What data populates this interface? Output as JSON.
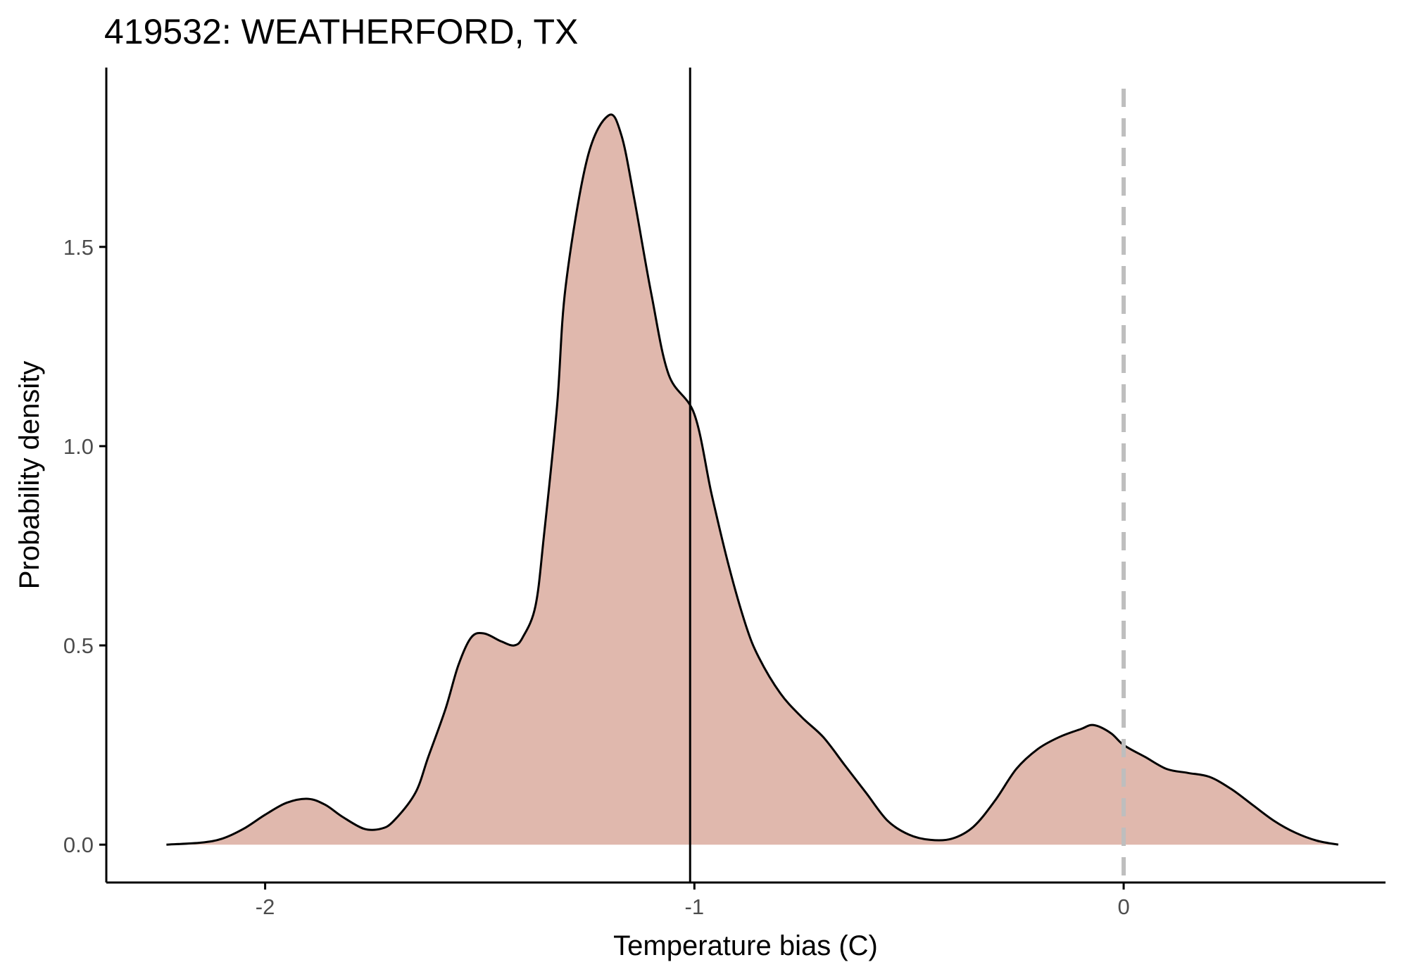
{
  "chart_data": {
    "type": "area",
    "title": "419532: WEATHERFORD, TX",
    "xlabel": "Temperature bias (C)",
    "ylabel": "Probability density",
    "xlim": [
      -2.37,
      0.61
    ],
    "ylim": [
      -0.095,
      1.95
    ],
    "x_ticks": [
      -2,
      -1,
      0
    ],
    "x_tick_labels": [
      "-2",
      "-1",
      "0"
    ],
    "y_ticks": [
      0,
      0.5,
      1,
      1.5
    ],
    "y_tick_labels": [
      "0.0",
      "0.5",
      "1.0",
      "1.5"
    ],
    "grid": false,
    "legend": "none",
    "fill_color": "#e0b8ad",
    "line_color": "#000000",
    "reference_lines": [
      {
        "x": -1.01,
        "style": "solid",
        "color": "#000000"
      },
      {
        "x": 0.0,
        "style": "dashed",
        "color": "#bebebe"
      }
    ],
    "series": [
      {
        "x": [
          -2.23,
          -2.15,
          -2.1,
          -2.05,
          -2.0,
          -1.95,
          -1.9,
          -1.86,
          -1.82,
          -1.77,
          -1.73,
          -1.7,
          -1.65,
          -1.62,
          -1.58,
          -1.55,
          -1.52,
          -1.49,
          -1.45,
          -1.42,
          -1.4,
          -1.37,
          -1.35,
          -1.32,
          -1.3,
          -1.25,
          -1.2,
          -1.17,
          -1.14,
          -1.1,
          -1.06,
          -1.0,
          -0.96,
          -0.92,
          -0.88,
          -0.85,
          -0.8,
          -0.75,
          -0.7,
          -0.65,
          -0.6,
          -0.55,
          -0.5,
          -0.45,
          -0.4,
          -0.35,
          -0.3,
          -0.25,
          -0.2,
          -0.15,
          -0.1,
          -0.07,
          -0.03,
          0.0,
          0.05,
          0.1,
          0.15,
          0.2,
          0.25,
          0.3,
          0.35,
          0.4,
          0.45,
          0.5
        ],
        "y": [
          0.0,
          0.005,
          0.015,
          0.04,
          0.075,
          0.105,
          0.115,
          0.1,
          0.07,
          0.04,
          0.04,
          0.06,
          0.13,
          0.22,
          0.34,
          0.45,
          0.52,
          0.53,
          0.51,
          0.5,
          0.52,
          0.6,
          0.78,
          1.1,
          1.4,
          1.72,
          1.83,
          1.78,
          1.62,
          1.38,
          1.18,
          1.08,
          0.88,
          0.7,
          0.55,
          0.47,
          0.38,
          0.32,
          0.27,
          0.2,
          0.13,
          0.06,
          0.025,
          0.012,
          0.015,
          0.045,
          0.11,
          0.19,
          0.24,
          0.27,
          0.29,
          0.3,
          0.28,
          0.25,
          0.22,
          0.19,
          0.18,
          0.17,
          0.14,
          0.1,
          0.06,
          0.03,
          0.01,
          0.0
        ]
      }
    ]
  }
}
